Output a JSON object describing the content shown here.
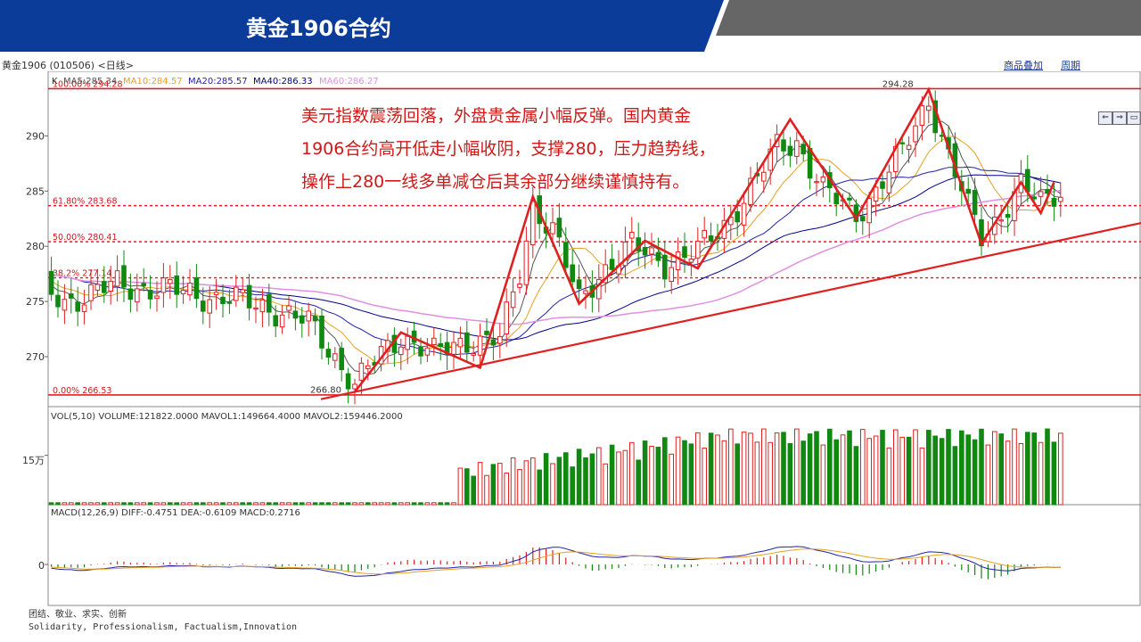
{
  "header": {
    "title": "黄金1906合约"
  },
  "toolbar": {
    "instrument": "黄金1906 (010506) <日线>",
    "overlay_label": "商品叠加",
    "period_label": "周期"
  },
  "annotation": {
    "lines": [
      "美元指数震荡回落，外盘贵金属小幅反弹。国内黄金",
      "1906合约高开低走小幅收阴，支撑280，压力趋势线，",
      "操作上280一线多单减仓后其余部分继续谨慎持有。"
    ],
    "color": "#d01818"
  },
  "footer": {
    "line1": "团结、敬业、求实、创新",
    "line2": "Solidarity, Professionalism, Factualism,Innovation"
  },
  "colors": {
    "header_blue": "#0c3c9a",
    "header_gray": "#666666",
    "up": "#e02020",
    "down": "#118811",
    "ma5": "#555555",
    "ma10": "#e8a020",
    "ma20": "#2222aa",
    "ma40": "#000088",
    "ma60": "#e090e0"
  },
  "chart_data": {
    "type": "candlestick",
    "price": {
      "header_prefix": "K",
      "ma_labels": [
        "MA5:285.34",
        "MA10:284.57",
        "MA20:285.57",
        "MA40:286.33",
        "MA60:286.27"
      ],
      "ylim": [
        265.8,
        295.2
      ],
      "yticks": [
        270,
        275,
        280,
        285,
        290
      ],
      "fib_levels": [
        {
          "label": "100.00% 294.28",
          "value": 294.28,
          "style": "solid"
        },
        {
          "label": "61.80% 283.68",
          "value": 283.68,
          "style": "dashed"
        },
        {
          "label": "50.00% 280.41",
          "value": 280.41,
          "style": "dashed"
        },
        {
          "label": "38.2% 277.14",
          "value": 277.14,
          "style": "dashed"
        },
        {
          "label": "0.00% 266.53",
          "value": 266.53,
          "style": "solid"
        }
      ],
      "high_label": "294.28",
      "low_label": "266.80",
      "trend_line": {
        "from": [
          0,
          266.7
        ],
        "to": [
          178,
          289.0
        ]
      },
      "zigzag": [
        [
          0,
          266.8
        ],
        [
          7,
          272.2
        ],
        [
          19,
          269.0
        ],
        [
          27,
          284.5
        ],
        [
          34,
          274.8
        ],
        [
          44,
          280.5
        ],
        [
          52,
          278.0
        ],
        [
          66,
          291.5
        ],
        [
          76,
          282.5
        ],
        [
          87,
          294.2
        ],
        [
          95,
          280.2
        ],
        [
          101,
          285.8
        ],
        [
          104,
          283.0
        ],
        [
          106,
          285.8
        ]
      ],
      "close_anchors": [
        [
          -61,
          279.0
        ],
        [
          -53,
          277.5
        ],
        [
          -44,
          275.0
        ],
        [
          -36,
          276.5
        ],
        [
          -28,
          276.0
        ],
        [
          -20,
          275.3
        ],
        [
          -13,
          274.5
        ],
        [
          -7,
          273.0
        ],
        [
          -3,
          270.0
        ],
        [
          0,
          267.5
        ],
        [
          3,
          269.5
        ],
        [
          7,
          272.0
        ],
        [
          12,
          270.2
        ],
        [
          17,
          271.5
        ],
        [
          22,
          271.5
        ],
        [
          25,
          277.5
        ],
        [
          27,
          283.8
        ],
        [
          30,
          281.5
        ],
        [
          34,
          275.0
        ],
        [
          37,
          277.5
        ],
        [
          42,
          280.0
        ],
        [
          47,
          278.5
        ],
        [
          52,
          279.5
        ],
        [
          56,
          282.0
        ],
        [
          61,
          286.0
        ],
        [
          64,
          289.0
        ],
        [
          67,
          289.5
        ],
        [
          71,
          285.0
        ],
        [
          76,
          283.0
        ],
        [
          79,
          285.0
        ],
        [
          83,
          288.5
        ],
        [
          87,
          293.5
        ],
        [
          90,
          288.0
        ],
        [
          93,
          283.5
        ],
        [
          95,
          281.0
        ],
        [
          98,
          283.0
        ],
        [
          101,
          285.3
        ],
        [
          104,
          284.0
        ],
        [
          107,
          285.3
        ]
      ]
    },
    "volume": {
      "header": "VOL(5,10) VOLUME:121822.0000 MAVOL1:149664.4000 MAVOL2:159446.2000",
      "ytick_label": "15万",
      "ytick_value": 150000,
      "last_value": 121822
    },
    "macd": {
      "header": "MACD(12,26,9) DIFF:-0.4751 DEA:-0.6109 MACD:0.2716",
      "zero_label": "0"
    }
  }
}
